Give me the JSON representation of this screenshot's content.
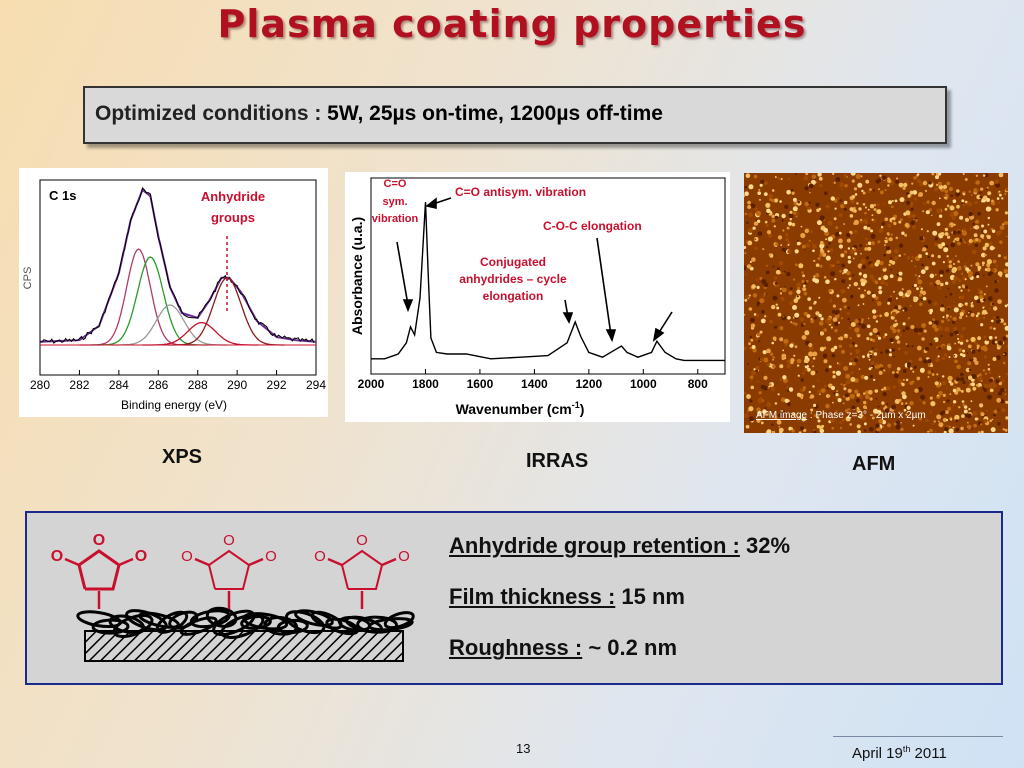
{
  "title": "Plasma coating properties",
  "conditions": {
    "label": "Optimized conditions :",
    "value": " 5W,  25µs on-time, 1200µs off-time"
  },
  "xps": {
    "caption": "XPS",
    "peak_label": "C 1s",
    "annotation_line1": "Anhydride",
    "annotation_line2": "groups",
    "ylabel": "CPS",
    "xlabel": "Binding energy (eV)",
    "xticks": [
      "280",
      "282",
      "284",
      "286",
      "288",
      "290",
      "292",
      "294"
    ]
  },
  "irras": {
    "caption": "IRRAS",
    "ylabel": "Absorbance (u.a.)",
    "xlabel": "Wavenumber (cm",
    "xlabel_sup": "-1",
    "xlabel_end": ")",
    "xticks": [
      "2000",
      "1800",
      "1600",
      "1400",
      "1200",
      "1000",
      "800"
    ],
    "ann_co_sym_1": "C=O",
    "ann_co_sym_2": "sym.",
    "ann_co_sym_3": "vibration",
    "ann_co_anti": "C=O antisym. vibration",
    "ann_coc": "C-O-C elongation",
    "ann_conj_1": "Conjugated",
    "ann_conj_2": "anhydrides – cycle",
    "ann_conj_3": "elongation"
  },
  "afm": {
    "caption": "AFM",
    "image_link": "AFM image",
    "image_note": " : Phase z=3° - 2µm x 2µm"
  },
  "molecule_atoms": {
    "o": "O"
  },
  "properties": [
    {
      "key": "Anhydride group retention :",
      "value": " 32%"
    },
    {
      "key": "Film thickness :",
      "value": " 15 nm"
    },
    {
      "key": "Roughness :",
      "value": " ~ 0.2 nm"
    }
  ],
  "footer": {
    "page": "13",
    "date_pre": "April 19",
    "date_sup": "th",
    "date_post": " 2011"
  },
  "colors": {
    "title": "#b01020",
    "accent_red": "#c8102e",
    "box_border": "#1a2a8a"
  },
  "chart_data": [
    {
      "type": "line",
      "title": "C 1s",
      "xlabel": "Binding energy (eV)",
      "ylabel": "CPS",
      "xlim": [
        280,
        294
      ],
      "x_reversed": false,
      "series": [
        {
          "name": "",
          "x": [
            280,
            282,
            283,
            284,
            284.6,
            285.2,
            285.6,
            286,
            286.6,
            287.2,
            288,
            288.6,
            289.2,
            289.6,
            290.2,
            291,
            292,
            293,
            294
          ],
          "y": [
            0.02,
            0.03,
            0.12,
            0.45,
            0.78,
            0.97,
            0.93,
            0.68,
            0.36,
            0.2,
            0.17,
            0.28,
            0.42,
            0.42,
            0.33,
            0.15,
            0.05,
            0.03,
            0.02
          ]
        }
      ],
      "annotations": [
        "Anhydride groups"
      ]
    },
    {
      "type": "line",
      "xlabel": "Wavenumber (cm-1)",
      "ylabel": "Absorbance (u.a.)",
      "xlim": [
        2000,
        700
      ],
      "x_reversed": true,
      "series": [
        {
          "name": "",
          "x": [
            2000,
            1950,
            1900,
            1870,
            1855,
            1840,
            1820,
            1800,
            1790,
            1780,
            1760,
            1720,
            1650,
            1560,
            1450,
            1350,
            1280,
            1250,
            1230,
            1200,
            1150,
            1100,
            1080,
            1060,
            1020,
            970,
            950,
            920,
            880,
            850,
            800,
            750,
            700
          ],
          "y": [
            0.02,
            0.02,
            0.05,
            0.12,
            0.22,
            0.17,
            0.4,
            1.0,
            0.55,
            0.15,
            0.06,
            0.05,
            0.05,
            0.02,
            0.03,
            0.04,
            0.12,
            0.25,
            0.16,
            0.06,
            0.03,
            0.08,
            0.1,
            0.06,
            0.03,
            0.06,
            0.13,
            0.06,
            0.02,
            0.01,
            0.01,
            0.01,
            0.01
          ]
        }
      ],
      "annotations": [
        "C=O sym. vibration",
        "C=O antisym. vibration",
        "C-O-C elongation",
        "Conjugated anhydrides – cycle elongation"
      ]
    }
  ]
}
